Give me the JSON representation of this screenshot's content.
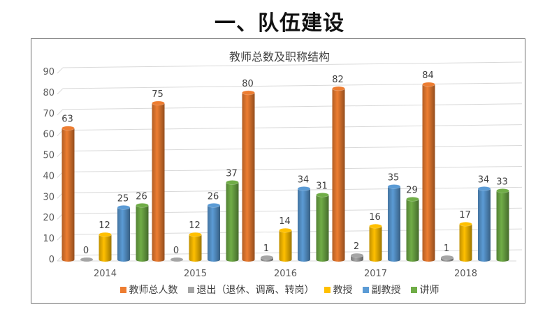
{
  "slide_title": "一、队伍建设",
  "chart_data": {
    "type": "bar",
    "title": "教师总数及职称结构",
    "categories": [
      "2014",
      "2015",
      "2016",
      "2017",
      "2018"
    ],
    "series": [
      {
        "name": "教师总人数",
        "color": "#ED7D31",
        "values": [
          63,
          75,
          80,
          82,
          84
        ]
      },
      {
        "name": "退出（退休、调离、转岗）",
        "color": "#A5A5A5",
        "values": [
          0,
          0,
          1,
          2,
          1
        ]
      },
      {
        "name": "教授",
        "color": "#FFC000",
        "values": [
          12,
          12,
          14,
          16,
          17
        ]
      },
      {
        "name": "副教授",
        "color": "#5B9BD5",
        "values": [
          25,
          26,
          34,
          35,
          34
        ]
      },
      {
        "name": "讲师",
        "color": "#70AD47",
        "values": [
          26,
          37,
          31,
          29,
          33
        ]
      }
    ],
    "yticks": [
      0,
      10,
      20,
      30,
      40,
      50,
      60,
      70,
      80,
      90
    ],
    "ylim": [
      0,
      90
    ],
    "grid": true,
    "legend_position": "bottom",
    "style": "3d-cylinder"
  }
}
